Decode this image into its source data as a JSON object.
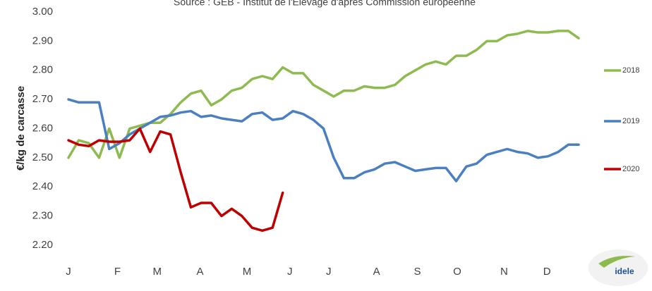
{
  "chart_data": {
    "type": "line",
    "title": "Source : GEB - Institut de l'Elevage d'après Commission européenne",
    "y_label": "€/kg de carcasse",
    "logo_text": "idele",
    "x": [
      1,
      2,
      3,
      4,
      5,
      6,
      7,
      8,
      9,
      10,
      11,
      12,
      13,
      14,
      15,
      16,
      17,
      18,
      19,
      20,
      21,
      22,
      23,
      24,
      25,
      26,
      27,
      28,
      29,
      30,
      31,
      32,
      33,
      34,
      35,
      36,
      37,
      38,
      39,
      40,
      41,
      42,
      43,
      44,
      45,
      46,
      47,
      48,
      49,
      50,
      51
    ],
    "xlim": [
      1,
      51
    ],
    "xticks": [
      {
        "value": 1,
        "label": "J"
      },
      {
        "value": 5.8,
        "label": "F"
      },
      {
        "value": 9.7,
        "label": "M"
      },
      {
        "value": 13.9,
        "label": "A"
      },
      {
        "value": 18.5,
        "label": "M"
      },
      {
        "value": 22.7,
        "label": "J"
      },
      {
        "value": 26.5,
        "label": "J"
      },
      {
        "value": 31.2,
        "label": "A"
      },
      {
        "value": 35.2,
        "label": "S"
      },
      {
        "value": 39.1,
        "label": "O"
      },
      {
        "value": 43.7,
        "label": "N"
      },
      {
        "value": 47.9,
        "label": "D"
      }
    ],
    "ylim": [
      2.2,
      3.0
    ],
    "yticks": [
      {
        "value": 2.2,
        "label": "2.20"
      },
      {
        "value": 2.3,
        "label": "2.30"
      },
      {
        "value": 2.4,
        "label": "2.40"
      },
      {
        "value": 2.5,
        "label": "2.50"
      },
      {
        "value": 2.6,
        "label": "2.60"
      },
      {
        "value": 2.7,
        "label": "2.70"
      },
      {
        "value": 2.8,
        "label": "2.80"
      },
      {
        "value": 2.9,
        "label": "2.90"
      },
      {
        "value": 3.0,
        "label": "3.00"
      }
    ],
    "grid": false,
    "legend": "right",
    "series": [
      {
        "name": "2018",
        "color": "#8dbb4f",
        "values": [
          2.5,
          2.56,
          2.55,
          2.5,
          2.6,
          2.5,
          2.6,
          2.61,
          2.62,
          2.62,
          2.65,
          2.69,
          2.72,
          2.73,
          2.68,
          2.7,
          2.73,
          2.74,
          2.77,
          2.78,
          2.77,
          2.81,
          2.79,
          2.79,
          2.75,
          2.73,
          2.71,
          2.73,
          2.73,
          2.745,
          2.74,
          2.74,
          2.75,
          2.78,
          2.8,
          2.82,
          2.83,
          2.82,
          2.85,
          2.85,
          2.87,
          2.9,
          2.9,
          2.92,
          2.925,
          2.935,
          2.93,
          2.93,
          2.935,
          2.935,
          2.91
        ]
      },
      {
        "name": "2019",
        "color": "#4a7fc1",
        "values": [
          2.7,
          2.69,
          2.69,
          2.69,
          2.53,
          2.55,
          2.58,
          2.6,
          2.62,
          2.64,
          2.645,
          2.655,
          2.66,
          2.64,
          2.645,
          2.635,
          2.63,
          2.625,
          2.65,
          2.655,
          2.63,
          2.635,
          2.66,
          2.65,
          2.63,
          2.6,
          2.5,
          2.43,
          2.43,
          2.45,
          2.46,
          2.48,
          2.485,
          2.47,
          2.455,
          2.46,
          2.465,
          2.465,
          2.42,
          2.47,
          2.48,
          2.51,
          2.52,
          2.53,
          2.52,
          2.515,
          2.5,
          2.505,
          2.52,
          2.545,
          2.545
        ]
      },
      {
        "name": "2020",
        "color": "#c00000",
        "values": [
          2.56,
          2.545,
          2.54,
          2.56,
          2.555,
          2.555,
          2.56,
          2.6,
          2.52,
          2.59,
          2.58,
          2.45,
          2.33,
          2.345,
          2.345,
          2.3,
          2.325,
          2.3,
          2.26,
          2.25,
          2.26,
          2.38,
          null,
          null,
          null,
          null,
          null,
          null,
          null,
          null,
          null,
          null,
          null,
          null,
          null,
          null,
          null,
          null,
          null,
          null,
          null,
          null,
          null,
          null,
          null,
          null,
          null,
          null,
          null,
          null,
          null
        ]
      }
    ]
  }
}
